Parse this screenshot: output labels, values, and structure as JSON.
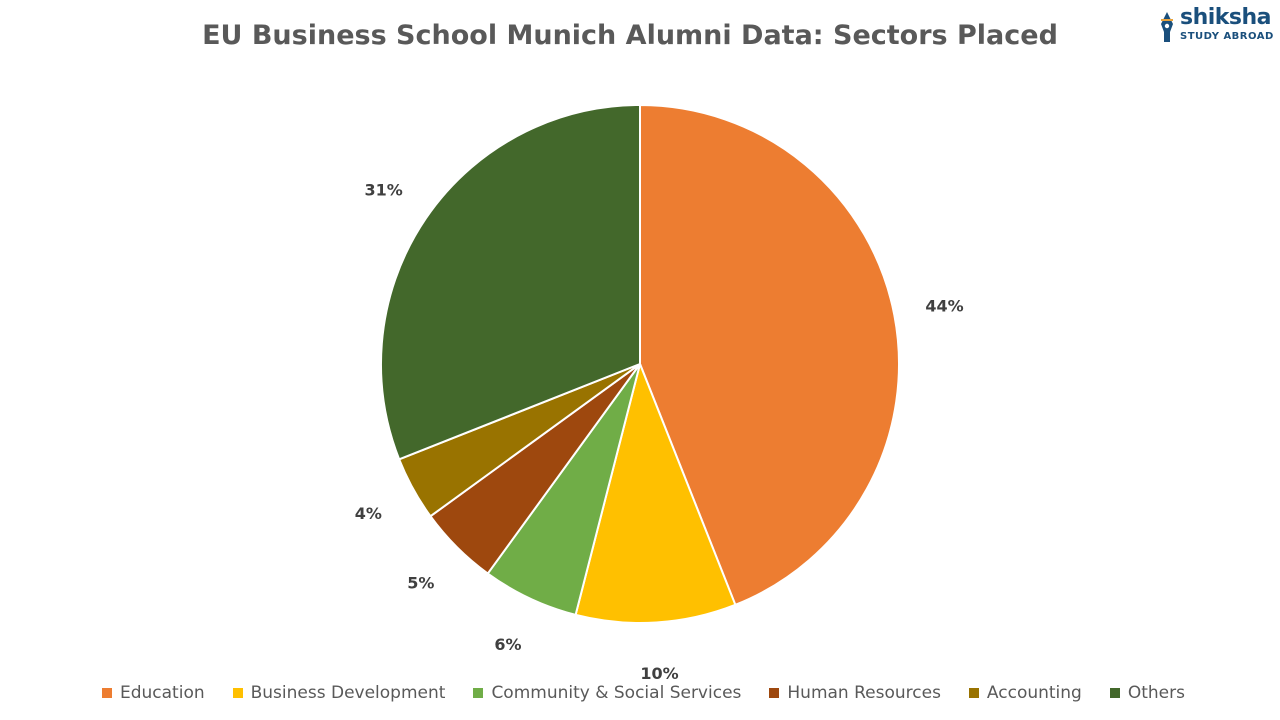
{
  "logo": {
    "name": "shiksha",
    "sub": "STUDY ABROAD",
    "color": "#1a4f7c"
  },
  "chart_data": {
    "type": "pie",
    "title": "EU Business School Munich Alumni Data: Sectors Placed",
    "categories": [
      "Education",
      "Business Development",
      "Community & Social Services",
      "Human Resources",
      "Accounting",
      "Others"
    ],
    "values": [
      44,
      10,
      6,
      5,
      4,
      31
    ],
    "labels": [
      "44%",
      "10%",
      "6%",
      "5%",
      "4%",
      "31%"
    ],
    "colors": [
      "#ED7D31",
      "#FFC000",
      "#70AD47",
      "#9E480E",
      "#997300",
      "#43682B"
    ],
    "legend_position": "bottom",
    "start_angle": "12 o'clock",
    "direction": "clockwise"
  }
}
